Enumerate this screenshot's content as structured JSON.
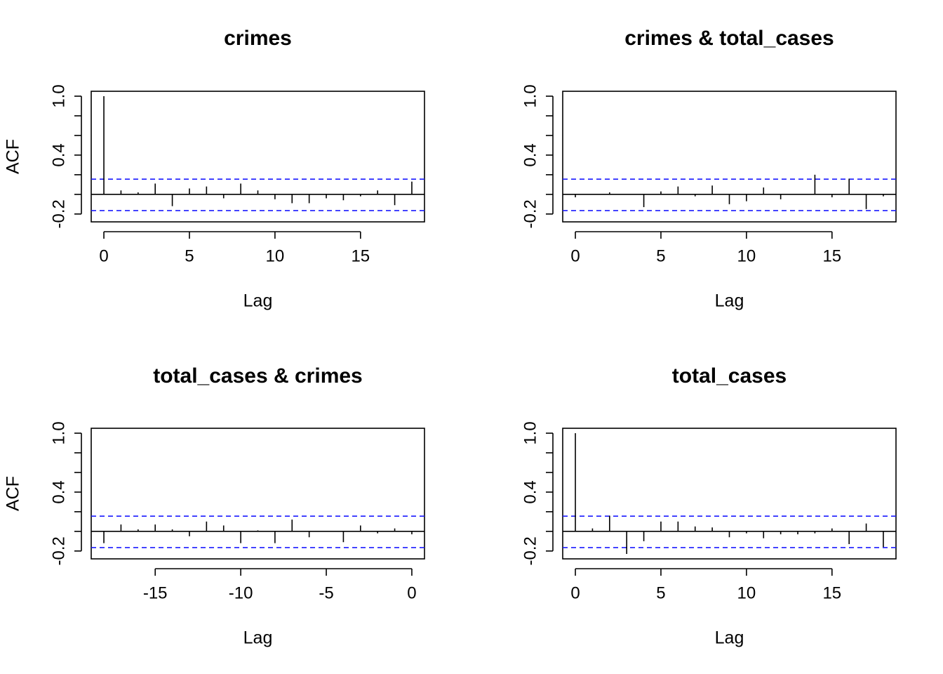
{
  "colors": {
    "ci_line": "#1a1aff",
    "axes": "#000000",
    "bars": "#000000",
    "background": "#ffffff"
  },
  "chart_data": [
    {
      "type": "bar",
      "title": "crimes",
      "xlabel": "Lag",
      "ylabel": "ACF",
      "xlim": [
        -0.74,
        18.74
      ],
      "ylim": [
        -0.28,
        1.05
      ],
      "xticks": [
        0,
        5,
        10,
        15
      ],
      "xtick_labels": [
        "0",
        "5",
        "10",
        "15"
      ],
      "yticks": [
        -0.2,
        0.0,
        0.2,
        0.4,
        0.6,
        0.8,
        1.0
      ],
      "ytick_labels": [
        "-0.2",
        "0.4",
        "1.0"
      ],
      "ytick_label_values": [
        -0.2,
        0.4,
        1.0
      ],
      "ci": [
        0.155,
        -0.165
      ],
      "lags": [
        0,
        1,
        2,
        3,
        4,
        5,
        6,
        7,
        8,
        9,
        10,
        11,
        12,
        13,
        14,
        15,
        16,
        17,
        18
      ],
      "values": [
        1.0,
        0.04,
        0.02,
        0.11,
        -0.12,
        0.06,
        0.08,
        -0.04,
        0.11,
        0.04,
        -0.05,
        -0.09,
        -0.09,
        -0.04,
        -0.06,
        -0.02,
        0.04,
        -0.11,
        0.13
      ]
    },
    {
      "type": "bar",
      "title": "crimes & total_cases",
      "xlabel": "Lag",
      "ylabel": "",
      "xlim": [
        -0.74,
        18.74
      ],
      "ylim": [
        -0.28,
        1.05
      ],
      "xticks": [
        0,
        5,
        10,
        15
      ],
      "xtick_labels": [
        "0",
        "5",
        "10",
        "15"
      ],
      "yticks": [
        -0.2,
        0.0,
        0.2,
        0.4,
        0.6,
        0.8,
        1.0
      ],
      "ytick_labels": [
        "-0.2",
        "0.4",
        "1.0"
      ],
      "ytick_label_values": [
        -0.2,
        0.4,
        1.0
      ],
      "ci": [
        0.155,
        -0.165
      ],
      "lags": [
        0,
        1,
        2,
        3,
        4,
        5,
        6,
        7,
        8,
        9,
        10,
        11,
        12,
        13,
        14,
        15,
        16,
        17,
        18
      ],
      "values": [
        -0.03,
        0.0,
        0.02,
        0.0,
        -0.13,
        0.03,
        0.08,
        -0.02,
        0.09,
        -0.1,
        -0.07,
        0.07,
        -0.05,
        0.0,
        0.2,
        -0.03,
        0.16,
        -0.15,
        -0.02
      ]
    },
    {
      "type": "bar",
      "title": "total_cases & crimes",
      "xlabel": "Lag",
      "ylabel": "ACF",
      "xlim": [
        -18.74,
        0.74
      ],
      "ylim": [
        -0.28,
        1.05
      ],
      "xticks": [
        -15,
        -10,
        -5,
        0
      ],
      "xtick_labels": [
        "-15",
        "-10",
        "-5",
        "0"
      ],
      "yticks": [
        -0.2,
        0.0,
        0.2,
        0.4,
        0.6,
        0.8,
        1.0
      ],
      "ytick_labels": [
        "-0.2",
        "0.4",
        "1.0"
      ],
      "ytick_label_values": [
        -0.2,
        0.4,
        1.0
      ],
      "ci": [
        0.155,
        -0.165
      ],
      "lags": [
        -18,
        -17,
        -16,
        -15,
        -14,
        -13,
        -12,
        -11,
        -10,
        -9,
        -8,
        -7,
        -6,
        -5,
        -4,
        -3,
        -2,
        -1,
        0
      ],
      "values": [
        -0.12,
        0.07,
        0.02,
        0.07,
        0.02,
        -0.05,
        0.1,
        0.06,
        -0.12,
        0.01,
        -0.12,
        0.12,
        -0.06,
        0.0,
        -0.11,
        0.06,
        -0.02,
        0.03,
        -0.03
      ]
    },
    {
      "type": "bar",
      "title": "total_cases",
      "xlabel": "Lag",
      "ylabel": "",
      "xlim": [
        -0.74,
        18.74
      ],
      "ylim": [
        -0.28,
        1.05
      ],
      "xticks": [
        0,
        5,
        10,
        15
      ],
      "xtick_labels": [
        "0",
        "5",
        "10",
        "15"
      ],
      "yticks": [
        -0.2,
        0.0,
        0.2,
        0.4,
        0.6,
        0.8,
        1.0
      ],
      "ytick_labels": [
        "-0.2",
        "0.4",
        "1.0"
      ],
      "ytick_label_values": [
        -0.2,
        0.4,
        1.0
      ],
      "ci": [
        0.155,
        -0.165
      ],
      "lags": [
        0,
        1,
        2,
        3,
        4,
        5,
        6,
        7,
        8,
        9,
        10,
        11,
        12,
        13,
        14,
        15,
        16,
        17,
        18
      ],
      "values": [
        1.0,
        0.03,
        0.16,
        -0.23,
        -0.1,
        0.1,
        0.1,
        0.05,
        0.04,
        -0.06,
        -0.02,
        -0.07,
        -0.03,
        -0.03,
        -0.02,
        0.03,
        -0.13,
        0.08,
        -0.16
      ]
    }
  ]
}
